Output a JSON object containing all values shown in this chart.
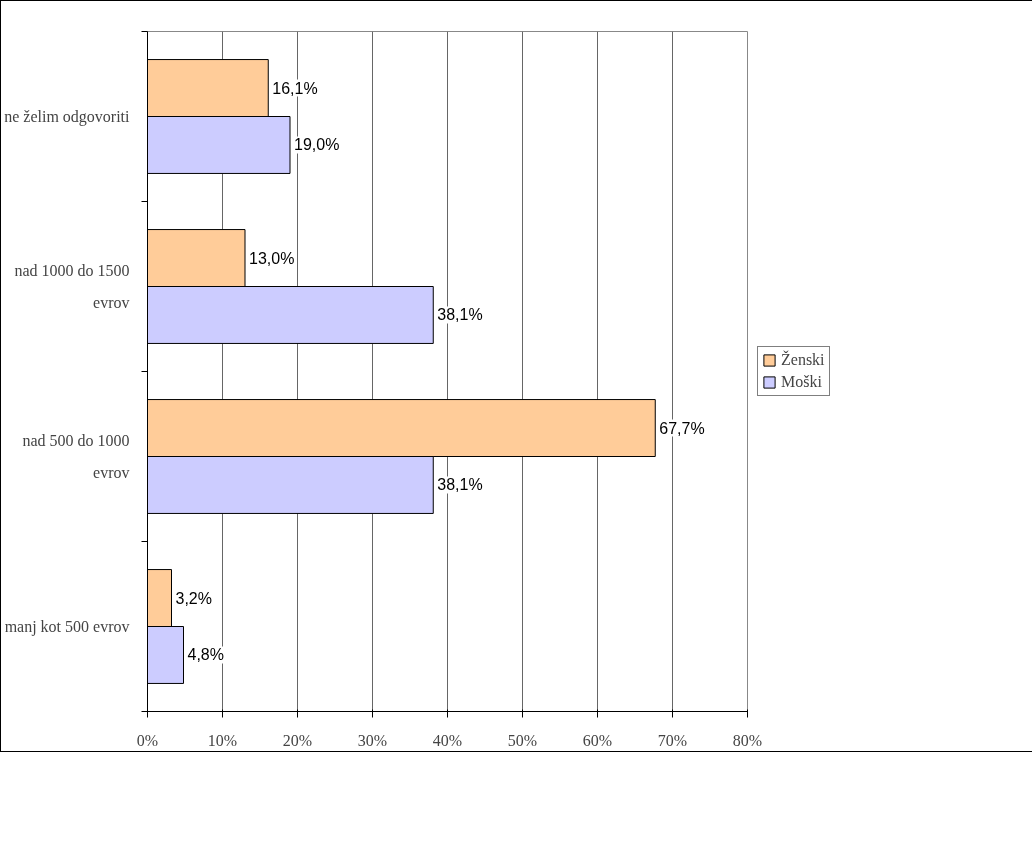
{
  "chart_data": {
    "type": "bar",
    "orientation": "horizontal",
    "categories": [
      "ne želim odgovoriti",
      "nad 1000 do 1500 evrov",
      "nad 500 do 1000 evrov",
      "manj kot 500 evrov"
    ],
    "series": [
      {
        "name": "Ženski",
        "color": "#ffcc99",
        "values": [
          16.1,
          13.0,
          67.7,
          3.2
        ],
        "value_labels": [
          "16,1%",
          "13,0%",
          "67,7%",
          "3,2%"
        ]
      },
      {
        "name": "Moški",
        "color": "#ccccff",
        "values": [
          19.0,
          38.1,
          38.1,
          4.8
        ],
        "value_labels": [
          "19,0%",
          "38,1%",
          "38,1%",
          "4,8%"
        ]
      }
    ],
    "xlim": [
      0,
      80
    ],
    "xticks": [
      {
        "value": 0,
        "label": "0%"
      },
      {
        "value": 10,
        "label": "10%"
      },
      {
        "value": 20,
        "label": "20%"
      },
      {
        "value": 30,
        "label": "30%"
      },
      {
        "value": 40,
        "label": "40%"
      },
      {
        "value": 50,
        "label": "50%"
      },
      {
        "value": 60,
        "label": "60%"
      },
      {
        "value": 70,
        "label": "70%"
      },
      {
        "value": 80,
        "label": "80%"
      }
    ],
    "grid": "x",
    "legend": "right"
  }
}
